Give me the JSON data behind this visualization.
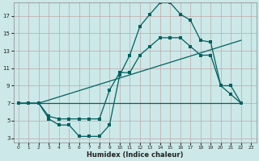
{
  "xlabel": "Humidex (Indice chaleur)",
  "bg_color": "#cce8e8",
  "grid_color": "#c0a8a8",
  "line_color": "#006060",
  "xlim": [
    -0.5,
    23.5
  ],
  "ylim": [
    2.5,
    18.5
  ],
  "yticks": [
    3,
    5,
    7,
    9,
    11,
    13,
    15,
    17
  ],
  "xticks": [
    0,
    1,
    2,
    3,
    4,
    5,
    6,
    7,
    8,
    9,
    10,
    11,
    12,
    13,
    14,
    15,
    16,
    17,
    18,
    19,
    20,
    21,
    22,
    23
  ],
  "curve1_x": [
    0,
    1,
    2,
    3,
    4,
    5,
    6,
    7,
    8,
    9,
    10,
    11,
    12,
    13,
    14,
    15,
    16,
    17,
    18,
    19,
    20,
    21,
    22
  ],
  "curve1_y": [
    7,
    7,
    7,
    5.2,
    4.5,
    4.5,
    3.2,
    3.2,
    3.2,
    4.5,
    10.2,
    12.5,
    15.8,
    17.2,
    18.5,
    18.5,
    17.2,
    16.5,
    14.2,
    14,
    9,
    9,
    7
  ],
  "curve2_x": [
    0,
    1,
    2,
    3,
    4,
    5,
    6,
    7,
    8,
    9,
    10,
    11,
    12,
    13,
    14,
    15,
    16,
    17,
    18,
    19,
    20,
    21,
    22
  ],
  "curve2_y": [
    7,
    7,
    7,
    5.5,
    5.2,
    5.2,
    5.2,
    5.2,
    5.2,
    8.5,
    10.5,
    10.5,
    12.5,
    13.5,
    14.5,
    14.5,
    14.5,
    13.5,
    12.5,
    12.5,
    9,
    8,
    7
  ],
  "line3_x": [
    0,
    22
  ],
  "line3_y": [
    7,
    7
  ],
  "line4_x": [
    2,
    22
  ],
  "line4_y": [
    7,
    14.2
  ],
  "marker_size": 2.2,
  "line_width": 0.9
}
